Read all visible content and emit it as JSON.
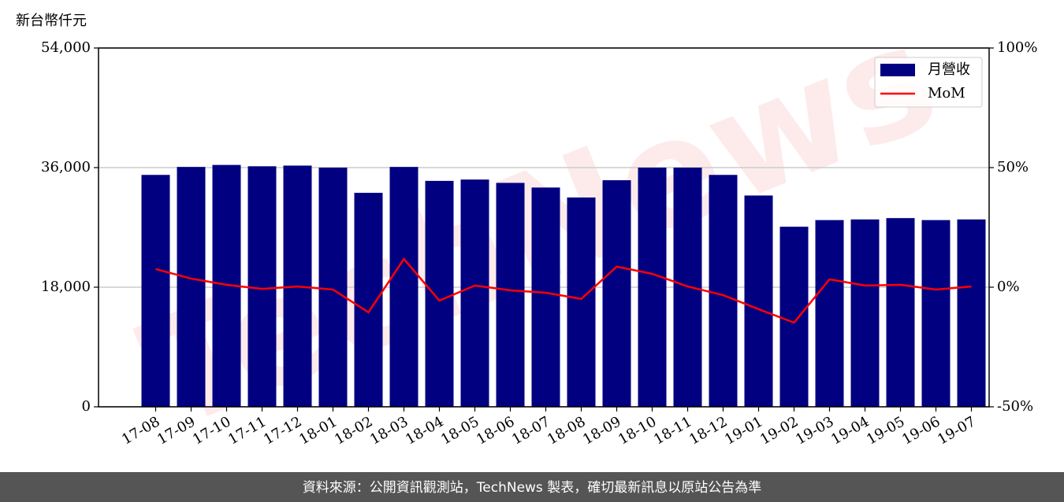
{
  "chart_data": {
    "type": "bar",
    "ylabel": "新台幣仟元",
    "watermark": "TechNews",
    "categories": [
      "17-08",
      "17-09",
      "17-10",
      "17-11",
      "17-12",
      "18-01",
      "18-02",
      "18-03",
      "18-04",
      "18-05",
      "18-06",
      "18-07",
      "18-08",
      "18-09",
      "18-10",
      "18-11",
      "18-12",
      "19-01",
      "19-02",
      "19-03",
      "19-04",
      "19-05",
      "19-06",
      "19-07"
    ],
    "series": [
      {
        "name": "月營收",
        "type": "bar",
        "color": "#000080",
        "values": [
          34900,
          36100,
          36400,
          36200,
          36300,
          36000,
          32200,
          36100,
          34000,
          34200,
          33700,
          33000,
          31500,
          34100,
          36000,
          36000,
          34900,
          31800,
          27100,
          28100,
          28200,
          28400,
          28100,
          28200
        ]
      },
      {
        "name": "MoM",
        "type": "line",
        "axis": "y2",
        "color": "#ff0000",
        "values": [
          7.6,
          3.6,
          1.0,
          -0.7,
          0.3,
          -1.0,
          -10.5,
          11.8,
          -5.6,
          0.7,
          -1.3,
          -2.3,
          -4.9,
          8.6,
          5.6,
          0.3,
          -3.3,
          -9.2,
          -14.8,
          3.3,
          0.7,
          1.0,
          -1.0,
          0.3
        ]
      }
    ],
    "ylim": [
      0,
      54000
    ],
    "yticks": [
      0,
      {
        "value": 18000,
        "label": "18,000"
      },
      {
        "value": 36000,
        "label": "36,000"
      },
      {
        "value": 54000,
        "label": "54,000"
      }
    ],
    "y2lim": [
      -50,
      100
    ],
    "y2ticks": [
      {
        "value": -50,
        "label": "-50%"
      },
      {
        "value": 0,
        "label": "0%"
      },
      {
        "value": 50,
        "label": "50%"
      },
      {
        "value": 100,
        "label": "100%"
      }
    ],
    "grid": true,
    "legend": "upper right"
  },
  "footer": "資料來源：公開資訊觀測站，TechNews 製表，確切最新訊息以原站公告為準"
}
